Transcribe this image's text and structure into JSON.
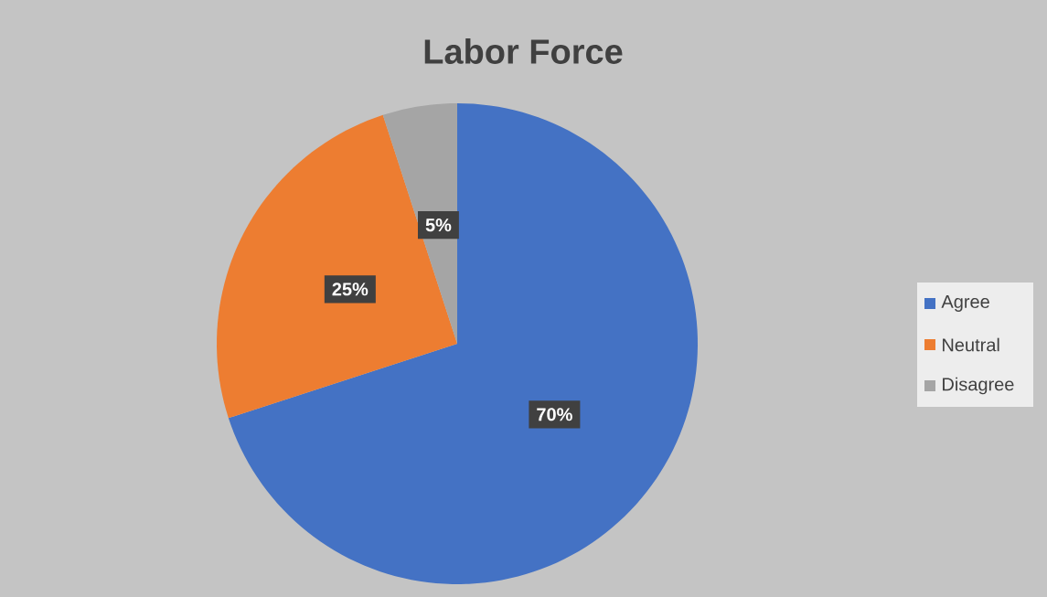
{
  "chart_data": {
    "type": "pie",
    "title": "Labor Force",
    "categories": [
      "Agree",
      "Neutral",
      "Disagree"
    ],
    "values": [
      70,
      25,
      5
    ],
    "colors": [
      "#4472c4",
      "#ed7d31",
      "#a5a5a5"
    ],
    "value_labels": [
      "70%",
      "25%",
      "5%"
    ],
    "legend": "right"
  }
}
